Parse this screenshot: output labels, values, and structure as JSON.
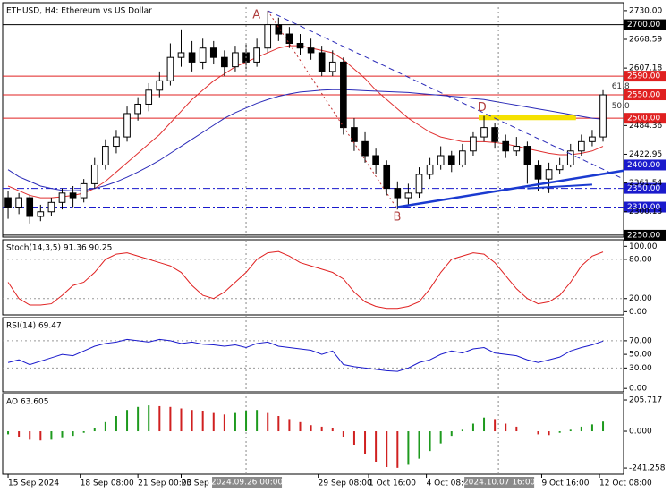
{
  "chart_data": [
    {
      "type": "candlestick",
      "title": "ETHUSD, H4:  Ethereum vs US Dollar",
      "xlim": [
        -0.5,
        56.9
      ],
      "xticks": [
        {
          "value": 0,
          "label": "15 Sep 2024"
        },
        {
          "value": 6.67,
          "label": "18 Sep 08:00"
        },
        {
          "value": 12,
          "label": "21 Sep 00:00"
        },
        {
          "value": 16,
          "label": "23 Sep 16:00"
        },
        {
          "value": 28.67,
          "label": "29 Sep 08:00"
        },
        {
          "value": 33.33,
          "label": "1 Oct 16:00"
        },
        {
          "value": 38.67,
          "label": "4 Oct 08:00"
        },
        {
          "value": 49.33,
          "label": "9 Oct 16:00"
        },
        {
          "value": 54.67,
          "label": "12 Oct 08:00"
        }
      ],
      "ylim": [
        2246,
        2747
      ],
      "yticks": [
        {
          "value": 2730,
          "label": "2730.00"
        },
        2668.59,
        2607.18,
        2484.36,
        2422.95,
        2361.54,
        2300.13
      ],
      "up_color": "#ffffff",
      "down_color": "#000000",
      "wick_color": "#000000",
      "open": [
        2330,
        2310,
        2330,
        2290,
        2300,
        2320,
        2340,
        2330,
        2360,
        2400,
        2440,
        2460,
        2510,
        2530,
        2560,
        2580,
        2630,
        2640,
        2620,
        2650,
        2630,
        2610,
        2640,
        2620,
        2650,
        2700,
        2680,
        2660,
        2650,
        2640,
        2600,
        2620,
        2480,
        2450,
        2420,
        2400,
        2350,
        2330,
        2340,
        2380,
        2400,
        2420,
        2400,
        2430,
        2460,
        2480,
        2450,
        2430,
        2440,
        2400,
        2370,
        2390,
        2400,
        2430,
        2450,
        2460
      ],
      "high": [
        2345,
        2340,
        2335,
        2315,
        2330,
        2350,
        2355,
        2370,
        2415,
        2455,
        2475,
        2525,
        2545,
        2575,
        2600,
        2660,
        2690,
        2665,
        2670,
        2665,
        2645,
        2655,
        2660,
        2670,
        2730,
        2715,
        2695,
        2680,
        2670,
        2655,
        2645,
        2630,
        2500,
        2470,
        2435,
        2410,
        2365,
        2360,
        2395,
        2415,
        2440,
        2430,
        2445,
        2470,
        2505,
        2490,
        2465,
        2460,
        2450,
        2410,
        2405,
        2415,
        2445,
        2465,
        2475,
        2560
      ],
      "low": [
        2285,
        2295,
        2275,
        2280,
        2290,
        2305,
        2310,
        2320,
        2350,
        2390,
        2425,
        2450,
        2495,
        2515,
        2545,
        2570,
        2610,
        2600,
        2605,
        2615,
        2590,
        2600,
        2605,
        2610,
        2640,
        2665,
        2650,
        2635,
        2625,
        2590,
        2590,
        2465,
        2430,
        2405,
        2380,
        2335,
        2305,
        2315,
        2330,
        2370,
        2390,
        2385,
        2395,
        2420,
        2450,
        2435,
        2415,
        2420,
        2360,
        2345,
        2340,
        2380,
        2395,
        2420,
        2440,
        2450
      ],
      "close": [
        2310,
        2330,
        2290,
        2300,
        2320,
        2340,
        2330,
        2360,
        2400,
        2440,
        2460,
        2510,
        2530,
        2560,
        2580,
        2630,
        2640,
        2620,
        2650,
        2630,
        2610,
        2640,
        2620,
        2650,
        2700,
        2680,
        2660,
        2650,
        2640,
        2600,
        2620,
        2480,
        2450,
        2420,
        2400,
        2350,
        2330,
        2340,
        2380,
        2400,
        2420,
        2400,
        2430,
        2460,
        2480,
        2450,
        2430,
        2440,
        2400,
        2370,
        2390,
        2400,
        2430,
        2450,
        2460,
        2550
      ],
      "lines": [
        {
          "color": "#e03030",
          "values": [
            2355,
            2345,
            2335,
            2330,
            2330,
            2332,
            2335,
            2340,
            2350,
            2365,
            2385,
            2405,
            2425,
            2445,
            2465,
            2490,
            2515,
            2540,
            2560,
            2580,
            2595,
            2610,
            2620,
            2630,
            2640,
            2650,
            2655,
            2655,
            2650,
            2645,
            2640,
            2625,
            2605,
            2585,
            2560,
            2540,
            2520,
            2500,
            2485,
            2470,
            2460,
            2455,
            2450,
            2450,
            2450,
            2448,
            2445,
            2440,
            2435,
            2430,
            2425,
            2422,
            2422,
            2425,
            2430,
            2440
          ]
        },
        {
          "color": "#2a2ab8",
          "values": [
            2390,
            2375,
            2365,
            2355,
            2350,
            2346,
            2345,
            2346,
            2350,
            2356,
            2364,
            2374,
            2385,
            2397,
            2410,
            2425,
            2440,
            2455,
            2470,
            2485,
            2500,
            2512,
            2522,
            2532,
            2540,
            2547,
            2552,
            2556,
            2558,
            2560,
            2561,
            2561,
            2560,
            2559,
            2558,
            2557,
            2556,
            2555,
            2553,
            2551,
            2549,
            2547,
            2545,
            2542,
            2540,
            2536,
            2532,
            2528,
            2524,
            2520,
            2516,
            2512,
            2508,
            2504,
            2500,
            2498
          ]
        }
      ],
      "levels": [
        {
          "value": 2700,
          "label": "2700.00",
          "color": "#000000",
          "style": "solid"
        },
        {
          "value": 2590,
          "label": "2590.00",
          "color": "#e02020",
          "style": "solid"
        },
        {
          "value": 2550,
          "label": "2550.00",
          "color": "#e02020",
          "style": "solid"
        },
        {
          "value": 2500,
          "label": "2500.00",
          "color": "#e02020",
          "style": "solid"
        },
        {
          "value": 2400,
          "label": "2400.00",
          "color": "#1a1acc",
          "style": "dashdot"
        },
        {
          "value": 2350,
          "label": "2350.00",
          "color": "#1a1acc",
          "style": "dashdot"
        },
        {
          "value": 2310,
          "label": "2310.00",
          "color": "#1a1acc",
          "style": "dashdot"
        },
        {
          "value": 2250,
          "label": "2250.00",
          "color": "#000000",
          "style": "solid"
        }
      ],
      "trendlines": [
        {
          "x": [
            24,
            56.9
          ],
          "y": [
            2730,
            2370
          ],
          "color": "#2a2ab8",
          "width": 1,
          "style": "dashed"
        },
        {
          "x": [
            24,
            36
          ],
          "y": [
            2730,
            2305
          ],
          "color": "#c03030",
          "width": 1,
          "style": "dotted"
        },
        {
          "x": [
            36,
            56.9
          ],
          "y": [
            2310,
            2388
          ],
          "color": "#1a3ad0",
          "width": 2.5,
          "style": "solid"
        },
        {
          "x": [
            48,
            54
          ],
          "y": [
            2350,
            2358
          ],
          "color": "#1a3ad0",
          "width": 2,
          "style": "solid"
        }
      ],
      "zone": {
        "x": [
          43.5,
          52.5
        ],
        "y": [
          2496,
          2508
        ],
        "color": "#f5e100"
      },
      "annotations": [
        {
          "text": "A",
          "x": 22.6,
          "y": 2720,
          "color": "#b04040"
        },
        {
          "text": "B",
          "x": 35.6,
          "y": 2288,
          "color": "#b04040"
        },
        {
          "text": "D",
          "x": 43.4,
          "y": 2522,
          "color": "#b04040"
        },
        {
          "text": "61.8",
          "x": 55.8,
          "y": 2568,
          "color": "#333333"
        },
        {
          "text": "50.0",
          "x": 55.8,
          "y": 2526,
          "color": "#333333"
        }
      ],
      "cursor_labels": [
        {
          "x": 22,
          "label": "2024.09.26 00:00"
        },
        {
          "x": 45.33,
          "label": "2024.10.07 16:00"
        }
      ]
    },
    {
      "type": "line",
      "title": "Stoch(14,3,5) 91.36 90.25",
      "ylim": [
        -5,
        110
      ],
      "yticks": [
        {
          "value": 100,
          "label": "100.00"
        },
        {
          "value": 80,
          "label": "80.00"
        },
        {
          "value": 20,
          "label": "20.00"
        },
        {
          "value": 0,
          "label": "0.00"
        }
      ],
      "levels": [
        80,
        20
      ],
      "series": [
        {
          "color": "#e02020",
          "values": [
            45,
            20,
            10,
            10,
            12,
            25,
            40,
            45,
            60,
            80,
            88,
            90,
            85,
            80,
            75,
            70,
            60,
            40,
            25,
            20,
            30,
            45,
            60,
            80,
            90,
            92,
            85,
            75,
            70,
            65,
            60,
            50,
            30,
            15,
            8,
            5,
            5,
            8,
            15,
            35,
            60,
            80,
            85,
            90,
            88,
            75,
            55,
            35,
            20,
            12,
            15,
            25,
            45,
            70,
            85,
            91.36
          ]
        }
      ]
    },
    {
      "type": "line",
      "title": "RSI(14) 69.47",
      "ylim": [
        -5,
        104
      ],
      "yticks": [
        {
          "value": 70,
          "label": "70.00"
        },
        {
          "value": 50,
          "label": "50.00"
        },
        {
          "value": 30,
          "label": "30.00"
        },
        {
          "value": 0,
          "label": "0.00"
        }
      ],
      "levels": [
        70,
        30
      ],
      "series": [
        {
          "color": "#1a1acc",
          "values": [
            38,
            42,
            35,
            40,
            45,
            50,
            48,
            55,
            62,
            66,
            68,
            72,
            70,
            68,
            72,
            70,
            66,
            68,
            65,
            64,
            62,
            64,
            60,
            66,
            68,
            62,
            60,
            58,
            56,
            50,
            55,
            35,
            32,
            30,
            28,
            26,
            25,
            30,
            38,
            42,
            50,
            55,
            52,
            58,
            60,
            52,
            50,
            48,
            42,
            38,
            42,
            46,
            55,
            60,
            64,
            69.47
          ]
        }
      ]
    },
    {
      "type": "bar",
      "title": "AO 63.605",
      "ylim": [
        -282,
        247
      ],
      "yticks": [
        {
          "value": 205.717,
          "label": "205.717"
        },
        {
          "value": 0,
          "label": "0.000"
        },
        {
          "value": -241.258,
          "label": "-241.258"
        }
      ],
      "up_color": "#1e9a1e",
      "down_color": "#d02020",
      "values": [
        -20,
        -40,
        -55,
        -60,
        -55,
        -45,
        -30,
        -10,
        20,
        60,
        100,
        140,
        160,
        170,
        165,
        160,
        150,
        140,
        130,
        120,
        110,
        120,
        130,
        140,
        120,
        100,
        80,
        60,
        40,
        30,
        20,
        -40,
        -90,
        -150,
        -200,
        -235,
        -240,
        -220,
        -180,
        -130,
        -80,
        -30,
        10,
        50,
        90,
        80,
        50,
        30,
        0,
        -20,
        -25,
        -10,
        10,
        30,
        45,
        63.605
      ]
    }
  ]
}
